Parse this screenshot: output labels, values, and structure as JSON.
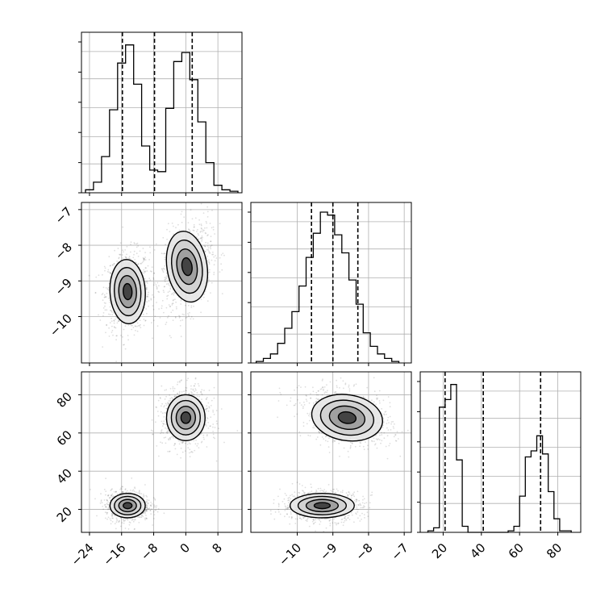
{
  "chart_data": {
    "type": "corner",
    "grid": true,
    "colors": {
      "line": "#000000",
      "grid": "#b0b0b0",
      "cell_dark": "#000000",
      "scatter": "#000000"
    },
    "dims": [
      {
        "label": "",
        "range": [
          -26,
          14
        ],
        "ticks": [
          -24,
          -16,
          -8,
          0,
          8
        ],
        "quantiles": [
          -15.8,
          -7.8,
          1.6
        ]
      },
      {
        "label": "",
        "range": [
          -11.3,
          -6.8
        ],
        "ticks": [
          -10,
          -9,
          -8,
          -7
        ],
        "quantiles": [
          -9.6,
          -9.0,
          -8.3
        ]
      },
      {
        "label": "",
        "range": [
          8,
          92
        ],
        "ticks": [
          20,
          40,
          60,
          80
        ],
        "quantiles": [
          21,
          41,
          71
        ]
      }
    ],
    "histograms": [
      {
        "dim": 0,
        "edges": [
          -25,
          -23,
          -21,
          -19,
          -17,
          -15,
          -13,
          -11,
          -9,
          -7,
          -5,
          -3,
          -1,
          1,
          3,
          5,
          7,
          9,
          11,
          13
        ],
        "counts": [
          0.02,
          0.07,
          0.24,
          0.55,
          0.86,
          0.98,
          0.72,
          0.31,
          0.15,
          0.14,
          0.56,
          0.87,
          0.93,
          0.75,
          0.47,
          0.2,
          0.05,
          0.02,
          0.01
        ]
      },
      {
        "dim": 1,
        "edges": [
          -11.15,
          -10.95,
          -10.75,
          -10.55,
          -10.35,
          -10.15,
          -9.95,
          -9.75,
          -9.55,
          -9.35,
          -9.15,
          -8.95,
          -8.75,
          -8.55,
          -8.35,
          -8.15,
          -7.95,
          -7.75,
          -7.55,
          -7.35,
          -7.15
        ],
        "counts": [
          0.01,
          0.03,
          0.06,
          0.13,
          0.23,
          0.34,
          0.51,
          0.7,
          0.86,
          1.0,
          0.98,
          0.85,
          0.73,
          0.55,
          0.39,
          0.2,
          0.11,
          0.06,
          0.03,
          0.01
        ]
      },
      {
        "dim": 2,
        "edges": [
          12,
          15,
          18,
          21,
          24,
          27,
          30,
          33,
          36,
          39,
          42,
          45,
          48,
          51,
          54,
          57,
          60,
          63,
          66,
          69,
          72,
          75,
          78,
          81,
          84,
          87
        ],
        "counts": [
          0.01,
          0.03,
          0.83,
          0.88,
          0.98,
          0.48,
          0.04,
          0.0,
          0.0,
          0.0,
          0.0,
          0.0,
          0.0,
          0.0,
          0.01,
          0.04,
          0.24,
          0.5,
          0.54,
          0.64,
          0.52,
          0.27,
          0.09,
          0.01,
          0.01
        ]
      }
    ],
    "pair_panels": [
      {
        "x_dim": 0,
        "y_dim": 1,
        "clusters": [
          {
            "center": [
              -14.5,
              -9.3
            ],
            "sigma": [
              2.2,
              0.45
            ],
            "rho": 0.1
          },
          {
            "center": [
              0.3,
              -8.6
            ],
            "sigma": [
              2.5,
              0.5
            ],
            "rho": 0.3
          }
        ]
      },
      {
        "x_dim": 0,
        "y_dim": 2,
        "clusters": [
          {
            "center": [
              -14.5,
              22
            ],
            "sigma": [
              2.2,
              3.2
            ],
            "rho": 0.0
          },
          {
            "center": [
              0.0,
              68
            ],
            "sigma": [
              2.4,
              6.0
            ],
            "rho": 0.0
          }
        ]
      },
      {
        "x_dim": 1,
        "y_dim": 2,
        "clusters": [
          {
            "center": [
              -9.3,
              22
            ],
            "sigma": [
              0.45,
              3.2
            ],
            "rho": 0.0
          },
          {
            "center": [
              -8.6,
              68
            ],
            "sigma": [
              0.5,
              6.0
            ],
            "rho": -0.3
          }
        ]
      }
    ]
  }
}
